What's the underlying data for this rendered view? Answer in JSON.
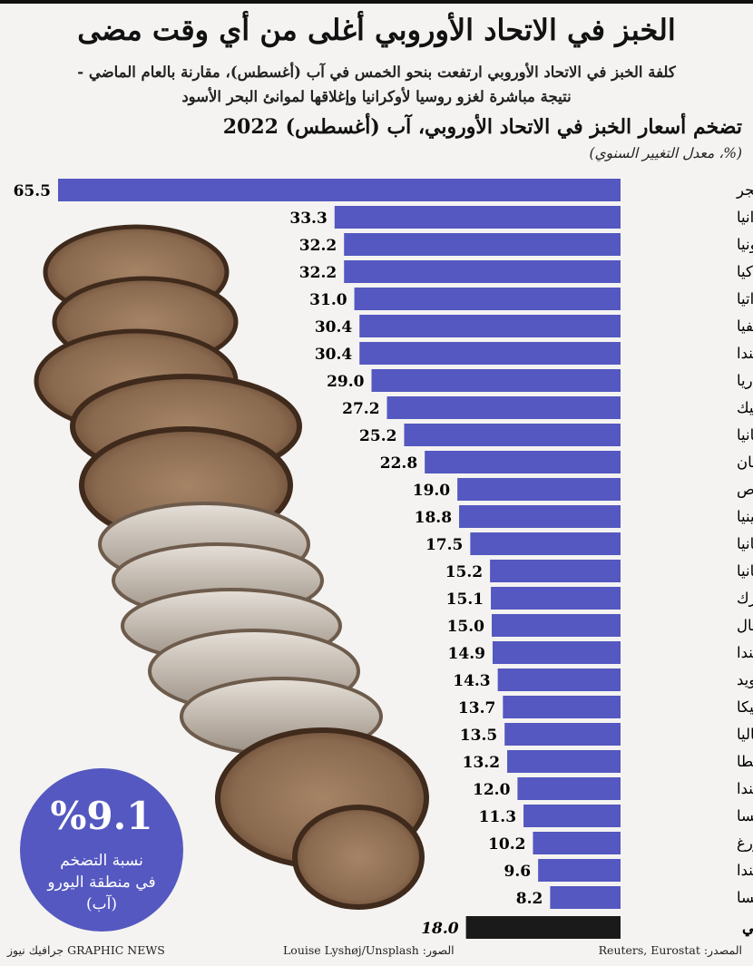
{
  "header": {
    "title": "الخبز في الاتحاد الأوروبي أغلى من أي وقت مضى",
    "subtitle_line1": "كلفة الخبز في الاتحاد الأوروبي ارتفعت بنحو الخمس في آب (أغسطس)، مقارنة بالعام الماضي -",
    "subtitle_line2": "نتيجة مباشرة لغزو روسيا لأوكرانيا وإغلاقها لموانئ البحر الأسود"
  },
  "badge": {
    "value": "%9.1",
    "caption_line1": "نسبة التضخم",
    "caption_line2": "في منطقة اليورو",
    "caption_line3": "(آب)"
  },
  "footer": {
    "source": "المصدر: Reuters, Eurostat",
    "photo_credit": "الصور: Louise Lyshøj/Unsplash",
    "agency": "GRAPHIC NEWS جرافيك نيوز"
  },
  "colors": {
    "bar": "#5458c0",
    "eu_bar": "#1a1a1a",
    "badge": "#5458c0",
    "background": "#f4f3f1"
  },
  "chart_data": {
    "type": "bar",
    "orientation": "horizontal",
    "title": "تضخم أسعار الخبز في الاتحاد الأوروبي، آب (أغسطس) 2022",
    "unit_label": "(%، معدل التغيير السنوي)",
    "xlim": [
      0,
      65.5
    ],
    "categories": [
      "المجر",
      "ليتوانيا",
      "إستونيا",
      "سلوفاكيا",
      "كرواتيا",
      "لاتفيا",
      "بولندا",
      "بلغاريا",
      "جمهورية التشيك",
      "رومانيا",
      "اليونان",
      "قبرص",
      "سلوفينيا",
      "ألمانيا",
      "إسبانيا",
      "الدنمارك",
      "البرتغال",
      "إيرلندا",
      "السويد",
      "بلجيكا",
      "إيطاليا",
      "مالطا",
      "فنلندا",
      "النمسا",
      "لوكسمبورغ",
      "هولندا",
      "فرنسا",
      "الاتحاد الأوروبي"
    ],
    "values": [
      65.5,
      33.3,
      32.2,
      32.2,
      31.0,
      30.4,
      30.4,
      29.0,
      27.2,
      25.2,
      22.8,
      19.0,
      18.8,
      17.5,
      15.2,
      15.1,
      15.0,
      14.9,
      14.3,
      13.7,
      13.5,
      13.2,
      12.0,
      11.3,
      10.2,
      9.6,
      8.2,
      18.0
    ],
    "value_labels": [
      "65.5",
      "33.3",
      "32.2",
      "32.2",
      "31.0",
      "30.4",
      "30.4",
      "29.0",
      "27.2",
      "25.2",
      "22.8",
      "19.0",
      "18.8",
      "17.5",
      "15.2",
      "15.1",
      "15.0",
      "14.9",
      "14.3",
      "13.7",
      "13.5",
      "13.2",
      "12.0",
      "11.3",
      "10.2",
      "9.6",
      "8.2",
      "18.0"
    ],
    "highlight": "الاتحاد الأوروبي"
  }
}
